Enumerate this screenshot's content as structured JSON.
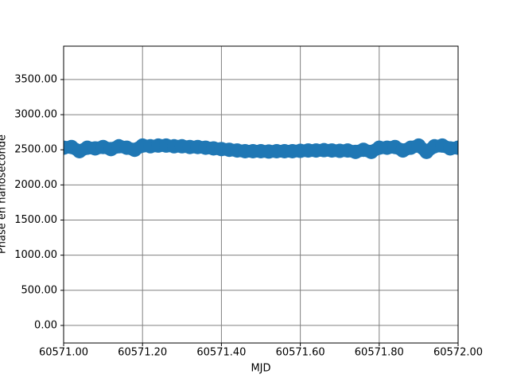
{
  "chart_data": {
    "type": "line",
    "xlabel": "MJD",
    "ylabel": "Phase en nanoseconde",
    "x": [
      60571.0,
      60571.02,
      60571.04,
      60571.06,
      60571.08,
      60571.1,
      60571.12,
      60571.14,
      60571.16,
      60571.18,
      60571.2,
      60571.22,
      60571.24,
      60571.26,
      60571.28,
      60571.3,
      60571.32,
      60571.34,
      60571.36,
      60571.38,
      60571.4,
      60571.42,
      60571.44,
      60571.46,
      60571.48,
      60571.5,
      60571.52,
      60571.54,
      60571.56,
      60571.58,
      60571.6,
      60571.62,
      60571.64,
      60571.66,
      60571.68,
      60571.7,
      60571.72,
      60571.74,
      60571.76,
      60571.78,
      60571.8,
      60571.82,
      60571.84,
      60571.86,
      60571.88,
      60571.9,
      60571.92,
      60571.94,
      60571.96,
      60571.98,
      60572.0
    ],
    "series": [
      {
        "color": "#1f77b4",
        "values": [
          2530,
          2540,
          2480,
          2530,
          2520,
          2540,
          2510,
          2550,
          2530,
          2500,
          2560,
          2550,
          2560,
          2560,
          2550,
          2550,
          2540,
          2540,
          2530,
          2520,
          2510,
          2500,
          2490,
          2480,
          2480,
          2480,
          2475,
          2480,
          2480,
          2480,
          2485,
          2490,
          2490,
          2495,
          2490,
          2485,
          2490,
          2470,
          2500,
          2470,
          2530,
          2530,
          2540,
          2490,
          2530,
          2560,
          2470,
          2550,
          2560,
          2520,
          2530
        ]
      }
    ],
    "xlim": [
      60571.0,
      60572.0
    ],
    "xticks": [
      {
        "value": 60571.0,
        "label": "60571.00"
      },
      {
        "value": 60571.2,
        "label": "60571.20"
      },
      {
        "value": 60571.4,
        "label": "60571.40"
      },
      {
        "value": 60571.6,
        "label": "60571.60"
      },
      {
        "value": 60571.8,
        "label": "60571.80"
      },
      {
        "value": 60572.0,
        "label": "60572.00"
      }
    ],
    "ylim": [
      -250,
      3975
    ],
    "yticks": [
      {
        "value": 0,
        "label": "0.00"
      },
      {
        "value": 500,
        "label": "500.00"
      },
      {
        "value": 1000,
        "label": "1000.00"
      },
      {
        "value": 1500,
        "label": "1500.00"
      },
      {
        "value": 2000,
        "label": "2000.00"
      },
      {
        "value": 2500,
        "label": "2500.00"
      },
      {
        "value": 3000,
        "label": "3000.00"
      },
      {
        "value": 3500,
        "label": "3500.00"
      }
    ],
    "grid": true
  }
}
